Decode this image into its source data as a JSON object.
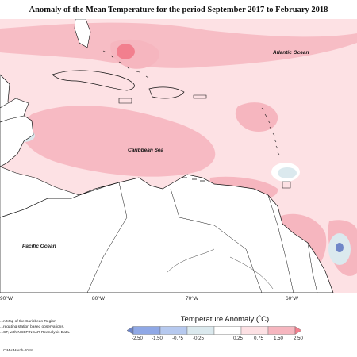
{
  "title": "Anomaly of the Mean Temperature for the period September 2017 to February 2018",
  "ocean_labels": {
    "atlantic": "Atlantic Ocean",
    "caribbean": "Caribbean Sea",
    "pacific": "Pacific Ocean"
  },
  "longitude_ticks": [
    "90°W",
    "80°W",
    "70°W",
    "60°W"
  ],
  "footer_lines": [
    "...n Map of the Caribbean Region",
    "...regating station based observations,",
    "...CF, with NCEP/NCAR Reanalysis Data."
  ],
  "credit": "CIMH March-2018",
  "legend": {
    "title": "Temperature Anomaly (˚C)",
    "labels": [
      "-2.50",
      "-1.50",
      "-0.75",
      "-0.25",
      "0.25",
      "0.75",
      "1.50",
      "2.50"
    ],
    "colors": [
      "#6f86c8",
      "#8fa8e6",
      "#b6c9ef",
      "#dbe9ee",
      "#ffffff",
      "#fde1e4",
      "#f6b6bf",
      "#f27f8e"
    ]
  },
  "colors": {
    "ocean_base": "#fde1e4",
    "warm": "#f6b6bf",
    "hot": "#f27f8e",
    "cool": "#dbe9ee",
    "cold": "#8fa8e6",
    "land": "#ffffff"
  }
}
